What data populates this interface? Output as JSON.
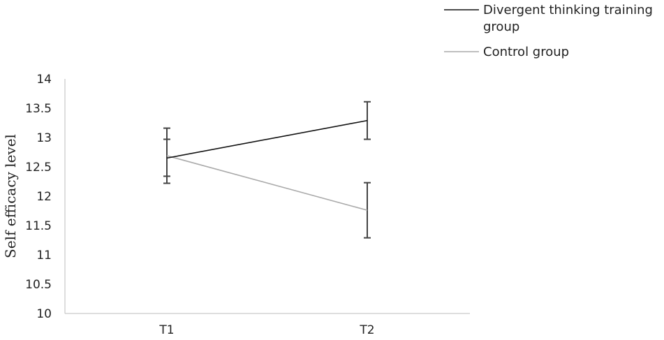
{
  "chart_data": {
    "type": "line",
    "ylabel": "Self efficacy level",
    "xlabel": "",
    "categories": [
      "T1",
      "T2"
    ],
    "ylim": [
      10,
      14
    ],
    "yticks": [
      "10",
      "10.5",
      "11",
      "11.5",
      "12",
      "12.5",
      "13",
      "13.5",
      "14"
    ],
    "grid": false,
    "legend_position": "top-right",
    "series": [
      {
        "name": "Divergent thinking training group",
        "legend_lines": [
          "Divergent thinking training",
          "group"
        ],
        "values": [
          12.65,
          13.29
        ],
        "error": [
          [
            12.34,
            12.97
          ],
          [
            12.97,
            13.61
          ]
        ],
        "color": "#111111"
      },
      {
        "name": "Control group",
        "legend_lines": [
          "Control group"
        ],
        "values": [
          12.69,
          11.76
        ],
        "error": [
          [
            12.22,
            13.16
          ],
          [
            11.29,
            12.23
          ]
        ],
        "color": "#aaaaaa"
      }
    ],
    "errorbar_color": "#444444",
    "axis_color": "#bdbdbd"
  }
}
